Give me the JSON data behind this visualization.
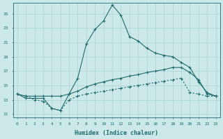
{
  "xlabel": "Humidex (Indice chaleur)",
  "bg_color": "#cce8e8",
  "line_color": "#1e6b6b",
  "grid_color": "#aad0d0",
  "xlim": [
    -0.5,
    23.5
  ],
  "ylim": [
    10.5,
    26.5
  ],
  "yticks": [
    11,
    13,
    15,
    17,
    19,
    21,
    23,
    25
  ],
  "xticks": [
    0,
    1,
    2,
    3,
    4,
    5,
    6,
    7,
    8,
    9,
    10,
    11,
    12,
    13,
    14,
    15,
    16,
    17,
    18,
    19,
    20,
    21,
    22,
    23
  ],
  "line1_x": [
    0,
    1,
    2,
    3,
    4,
    5,
    6,
    7,
    8,
    9,
    10,
    11,
    12,
    13,
    14,
    15,
    16,
    17,
    18,
    19,
    20,
    21,
    22,
    23
  ],
  "line1_y": [
    13.8,
    13.2,
    13.2,
    13.2,
    11.8,
    11.5,
    13.8,
    16.0,
    20.8,
    22.8,
    24.0,
    26.2,
    24.8,
    21.8,
    21.2,
    20.2,
    19.5,
    19.2,
    19.0,
    18.2,
    17.5,
    15.5,
    14.0,
    13.5
  ],
  "line2_x": [
    0,
    1,
    2,
    3,
    4,
    5,
    6,
    7,
    8,
    9,
    10,
    11,
    12,
    13,
    14,
    15,
    16,
    17,
    18,
    19,
    20,
    21,
    22,
    23
  ],
  "line2_y": [
    13.8,
    13.5,
    13.5,
    13.5,
    13.5,
    13.5,
    13.8,
    14.2,
    14.8,
    15.2,
    15.5,
    15.8,
    16.0,
    16.3,
    16.5,
    16.8,
    17.0,
    17.2,
    17.5,
    17.5,
    16.8,
    15.8,
    13.8,
    13.5
  ],
  "line3_x": [
    0,
    1,
    2,
    3,
    4,
    5,
    6,
    7,
    8,
    9,
    10,
    11,
    12,
    13,
    14,
    15,
    16,
    17,
    18,
    19,
    20,
    21,
    22,
    23
  ],
  "line3_y": [
    13.8,
    13.5,
    13.0,
    12.8,
    11.8,
    11.5,
    13.0,
    13.5,
    13.8,
    14.0,
    14.2,
    14.4,
    14.6,
    14.8,
    15.0,
    15.2,
    15.4,
    15.6,
    15.8,
    16.0,
    14.0,
    13.8,
    13.5,
    13.5
  ]
}
